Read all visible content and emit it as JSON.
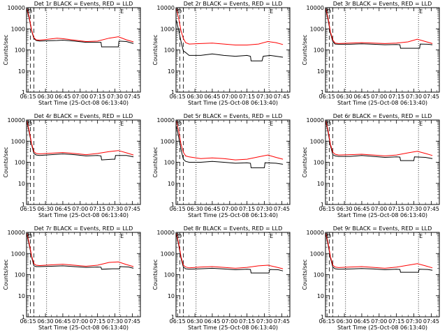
{
  "chart_data": {
    "type": "line",
    "y_scale": "log",
    "ylim": [
      1,
      10000
    ],
    "y_ticks": [
      {
        "value": 10000,
        "label": "10000"
      },
      {
        "value": 1000,
        "label": "1000"
      },
      {
        "value": 100,
        "label": "100"
      },
      {
        "value": 10,
        "label": "10"
      },
      {
        "value": 1,
        "label": "1"
      }
    ],
    "xlim": [
      "06:13:40",
      "07:52:00"
    ],
    "x_ticks": [
      "06:15",
      "06:30",
      "06:45",
      "07:00",
      "07:15",
      "07:30",
      "07:45"
    ],
    "xlabel": "Start Time (25-Oct-08 06:13:40)",
    "ylabel": "Counts/sec",
    "vertical_markers": {
      "dashed": [
        "06:17:00",
        "06:20:00"
      ],
      "dotted": [
        "06:31:00",
        "07:34:00"
      ]
    },
    "corner_marks": [
      "D",
      "E"
    ],
    "series_colors": {
      "events": "#000000",
      "lld": "#ff0000"
    },
    "panels": [
      {
        "title": "Det 1r BLACK = Events, RED = LLD",
        "series": [
          {
            "x": [
              "06:14",
              "06:16",
              "06:18",
              "06:20",
              "06:22",
              "06:25",
              "06:30",
              "06:40",
              "06:45",
              "06:55",
              "07:05",
              "07:15",
              "07:18",
              "07:18.5",
              "07:28",
              "07:33",
              "07:33.5",
              "07:40",
              "07:46"
            ],
            "values": [
              8000,
              3000,
              800,
              350,
              280,
              260,
              270,
              280,
              290,
              260,
              230,
              230,
              230,
              140,
              140,
              140,
              260,
              250,
              200
            ]
          },
          {
            "x": [
              "06:14",
              "06:16",
              "06:18",
              "06:20",
              "06:22",
              "06:25",
              "06:30",
              "06:40",
              "06:45",
              "06:55",
              "07:05",
              "07:15",
              "07:25",
              "07:33",
              "07:40",
              "07:46"
            ],
            "values": [
              9000,
              3500,
              900,
              380,
              300,
              290,
              310,
              360,
              340,
              290,
              250,
              260,
              360,
              420,
              300,
              240
            ]
          }
        ]
      },
      {
        "title": "Det 2r BLACK = Events, RED = LLD",
        "series": [
          {
            "x": [
              "06:14",
              "06:16",
              "06:18",
              "06:20",
              "06:22",
              "06:25",
              "06:35",
              "06:45",
              "06:55",
              "07:05",
              "07:15",
              "07:18",
              "07:18.5",
              "07:28",
              "07:29",
              "07:35",
              "07:46"
            ],
            "values": [
              2500,
              800,
              250,
              90,
              75,
              55,
              55,
              65,
              55,
              50,
              55,
              50,
              30,
              30,
              50,
              55,
              45
            ]
          },
          {
            "x": [
              "06:14",
              "06:16",
              "06:18",
              "06:20",
              "06:22",
              "06:25",
              "06:35",
              "06:45",
              "06:55",
              "07:05",
              "07:15",
              "07:25",
              "07:33",
              "07:40",
              "07:46"
            ],
            "values": [
              9000,
              3000,
              800,
              350,
              220,
              190,
              200,
              210,
              190,
              170,
              170,
              190,
              250,
              220,
              180
            ]
          }
        ]
      },
      {
        "title": "Det 3r BLACK = Events, RED = LLD",
        "series": [
          {
            "x": [
              "06:14",
              "06:16",
              "06:18",
              "06:20",
              "06:22",
              "06:25",
              "06:35",
              "06:45",
              "06:55",
              "07:05",
              "07:15",
              "07:18",
              "07:18.5",
              "07:28",
              "07:35",
              "07:35.5",
              "07:42",
              "07:46"
            ],
            "values": [
              8000,
              2500,
              600,
              250,
              190,
              185,
              185,
              195,
              185,
              175,
              180,
              175,
              120,
              120,
              120,
              190,
              185,
              175
            ]
          },
          {
            "x": [
              "06:14",
              "06:16",
              "06:18",
              "06:20",
              "06:22",
              "06:25",
              "06:35",
              "06:45",
              "06:55",
              "07:05",
              "07:15",
              "07:25",
              "07:33",
              "07:40",
              "07:46"
            ],
            "values": [
              9000,
              3000,
              700,
              300,
              210,
              200,
              210,
              220,
              210,
              200,
              210,
              240,
              320,
              250,
              200
            ]
          }
        ]
      },
      {
        "title": "Det 4r BLACK = Events, RED = LLD",
        "series": [
          {
            "x": [
              "06:14",
              "06:16",
              "06:18",
              "06:20",
              "06:22",
              "06:25",
              "06:35",
              "06:45",
              "06:55",
              "07:05",
              "07:15",
              "07:18",
              "07:18.5",
              "07:28",
              "07:30",
              "07:30.5",
              "07:40",
              "07:46"
            ],
            "values": [
              8000,
              2500,
              700,
              260,
              220,
              210,
              230,
              250,
              230,
              200,
              210,
              200,
              130,
              140,
              140,
              210,
              210,
              180
            ]
          },
          {
            "x": [
              "06:14",
              "06:16",
              "06:18",
              "06:20",
              "06:22",
              "06:25",
              "06:35",
              "06:45",
              "06:55",
              "07:05",
              "07:15",
              "07:25",
              "07:33",
              "07:40",
              "07:46"
            ],
            "values": [
              9000,
              3000,
              800,
              320,
              260,
              250,
              270,
              290,
              260,
              230,
              260,
              320,
              360,
              280,
              220
            ]
          }
        ]
      },
      {
        "title": "Det 5r BLACK = Events, RED = LLD",
        "series": [
          {
            "x": [
              "06:14",
              "06:16",
              "06:18",
              "06:20",
              "06:22",
              "06:25",
              "06:35",
              "06:45",
              "06:55",
              "07:05",
              "07:15",
              "07:18",
              "07:18.5",
              "07:28",
              "07:30",
              "07:30.5",
              "07:40",
              "07:46"
            ],
            "values": [
              5000,
              1500,
              400,
              140,
              110,
              100,
              100,
              110,
              100,
              90,
              95,
              90,
              55,
              55,
              55,
              95,
              90,
              80
            ]
          },
          {
            "x": [
              "06:14",
              "06:16",
              "06:18",
              "06:20",
              "06:22",
              "06:25",
              "06:35",
              "06:45",
              "06:55",
              "07:05",
              "07:15",
              "07:25",
              "07:33",
              "07:40",
              "07:46"
            ],
            "values": [
              9000,
              3000,
              700,
              300,
              200,
              180,
              150,
              160,
              150,
              130,
              140,
              180,
              220,
              170,
              140
            ]
          }
        ]
      },
      {
        "title": "Det 6r BLACK = Events, RED = LLD",
        "series": [
          {
            "x": [
              "06:14",
              "06:16",
              "06:18",
              "06:20",
              "06:22",
              "06:25",
              "06:35",
              "06:45",
              "06:55",
              "07:05",
              "07:15",
              "07:18",
              "07:18.5",
              "07:28",
              "07:30",
              "07:30.5",
              "07:40",
              "07:46"
            ],
            "values": [
              8000,
              2500,
              600,
              230,
              200,
              190,
              190,
              210,
              190,
              170,
              180,
              175,
              120,
              120,
              120,
              180,
              170,
              150
            ]
          },
          {
            "x": [
              "06:14",
              "06:16",
              "06:18",
              "06:20",
              "06:22",
              "06:25",
              "06:35",
              "06:45",
              "06:55",
              "07:05",
              "07:15",
              "07:25",
              "07:33",
              "07:40",
              "07:46"
            ],
            "values": [
              9000,
              3000,
              700,
              300,
              240,
              220,
              230,
              240,
              220,
              200,
              220,
              280,
              330,
              260,
              210
            ]
          }
        ]
      },
      {
        "title": "Det 7r BLACK = Events, RED = LLD",
        "series": [
          {
            "x": [
              "06:14",
              "06:16",
              "06:18",
              "06:20",
              "06:22",
              "06:25",
              "06:35",
              "06:45",
              "06:55",
              "07:05",
              "07:15",
              "07:18",
              "07:18.5",
              "07:28",
              "07:34",
              "07:34.5",
              "07:42",
              "07:46"
            ],
            "values": [
              8000,
              2500,
              700,
              260,
              240,
              240,
              250,
              260,
              240,
              220,
              230,
              225,
              180,
              190,
              190,
              240,
              230,
              200
            ]
          },
          {
            "x": [
              "06:14",
              "06:16",
              "06:18",
              "06:20",
              "06:22",
              "06:25",
              "06:35",
              "06:45",
              "06:55",
              "07:05",
              "07:15",
              "07:25",
              "07:33",
              "07:40",
              "07:46"
            ],
            "values": [
              9000,
              3000,
              800,
              330,
              280,
              270,
              290,
              310,
              280,
              250,
              280,
              380,
              400,
              300,
              240
            ]
          }
        ]
      },
      {
        "title": "Det 8r BLACK = Events, RED = LLD",
        "series": [
          {
            "x": [
              "06:14",
              "06:16",
              "06:18",
              "06:20",
              "06:22",
              "06:25",
              "06:35",
              "06:45",
              "06:55",
              "07:05",
              "07:15",
              "07:18",
              "07:18.5",
              "07:28",
              "07:34",
              "07:34.5",
              "07:42",
              "07:46"
            ],
            "values": [
              8000,
              2500,
              600,
              230,
              190,
              180,
              190,
              200,
              185,
              170,
              180,
              175,
              120,
              120,
              120,
              175,
              170,
              150
            ]
          },
          {
            "x": [
              "06:14",
              "06:16",
              "06:18",
              "06:20",
              "06:22",
              "06:25",
              "06:35",
              "06:45",
              "06:55",
              "07:05",
              "07:15",
              "07:25",
              "07:33",
              "07:40",
              "07:46"
            ],
            "values": [
              9000,
              3000,
              700,
              280,
              230,
              210,
              230,
              240,
              220,
              200,
              220,
              260,
              280,
              230,
              190
            ]
          }
        ]
      },
      {
        "title": "Det 9r BLACK = Events, RED = LLD",
        "series": [
          {
            "x": [
              "06:14",
              "06:16",
              "06:18",
              "06:20",
              "06:22",
              "06:25",
              "06:35",
              "06:45",
              "06:55",
              "07:05",
              "07:15",
              "07:18",
              "07:18.5",
              "07:28",
              "07:34",
              "07:34.5",
              "07:42",
              "07:46"
            ],
            "values": [
              8000,
              2500,
              600,
              230,
              190,
              180,
              185,
              195,
              185,
              170,
              180,
              175,
              130,
              130,
              130,
              180,
              175,
              160
            ]
          },
          {
            "x": [
              "06:14",
              "06:16",
              "06:18",
              "06:20",
              "06:22",
              "06:25",
              "06:35",
              "06:45",
              "06:55",
              "07:05",
              "07:15",
              "07:25",
              "07:33",
              "07:40",
              "07:46"
            ],
            "values": [
              9000,
              3000,
              700,
              280,
              230,
              215,
              230,
              240,
              220,
              200,
              225,
              280,
              330,
              260,
              210
            ]
          }
        ]
      }
    ]
  }
}
